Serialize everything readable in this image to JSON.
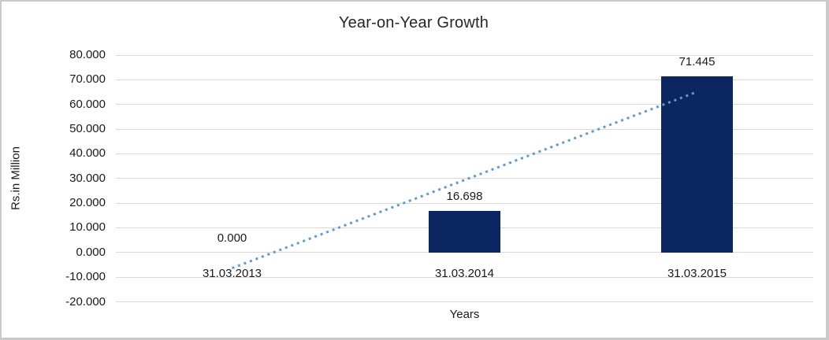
{
  "chart": {
    "title": "Year-on-Year Growth",
    "xlabel": "Years",
    "ylabel": "Rs.in Million"
  },
  "chart_data": {
    "type": "bar",
    "title": "Year-on-Year Growth",
    "xlabel": "Years",
    "ylabel": "Rs.in Million",
    "categories": [
      "31.03.2013",
      "31.03.2014",
      "31.03.2015"
    ],
    "values": [
      0.0,
      16.698,
      71.445
    ],
    "data_labels": [
      "0.000",
      "16.698",
      "71.445"
    ],
    "ylim": [
      -20,
      80
    ],
    "ytick_step": 10,
    "ytick_labels": [
      "80.000",
      "70.000",
      "60.000",
      "50.000",
      "40.000",
      "30.000",
      "20.000",
      "10.000",
      "0.000",
      "-10.000",
      "-20.000"
    ],
    "grid": true,
    "legend": false,
    "bar_color": "#0c2661",
    "gridline_color": "#d9d9d9",
    "text_color": "#1a1a1a",
    "trendline": {
      "type": "linear",
      "style": "dotted",
      "color": "#5b9bd5",
      "start_value": -6.34,
      "end_value": 65.1
    }
  }
}
